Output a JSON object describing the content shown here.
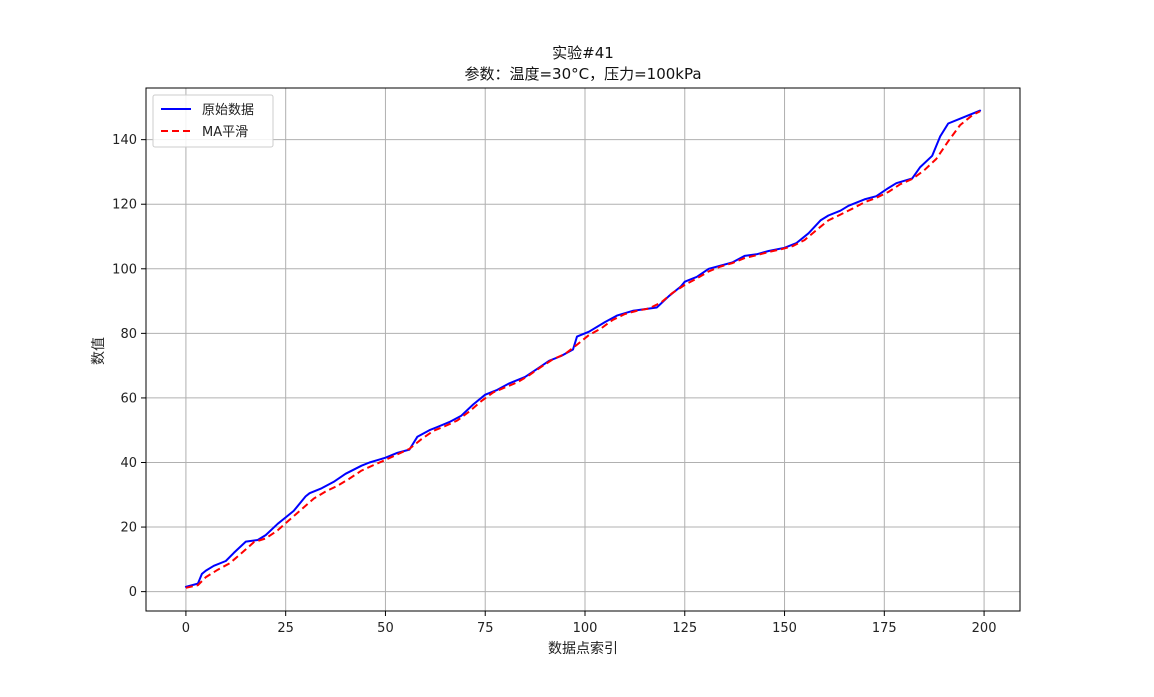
{
  "chart_data": {
    "type": "line",
    "title": "实验#41",
    "subtitle": "参数：温度=30°C，压力=100kPa",
    "xlabel": "数据点索引",
    "ylabel": "数值",
    "xlim": [
      -10,
      209
    ],
    "ylim": [
      -6,
      156
    ],
    "xticks": [
      0,
      25,
      50,
      75,
      100,
      125,
      150,
      175,
      200
    ],
    "yticks": [
      0,
      20,
      40,
      60,
      80,
      100,
      120,
      140
    ],
    "grid": true,
    "legend_position": "top-left",
    "series": [
      {
        "name": "原始数据",
        "color": "#0000ff",
        "style": "solid",
        "x": [
          0,
          3,
          4,
          5,
          7,
          10,
          12,
          15,
          18,
          20,
          23,
          25,
          27,
          30,
          31,
          34,
          37,
          40,
          44,
          46,
          50,
          53,
          56,
          58,
          61,
          63,
          66,
          69,
          72,
          75,
          78,
          81,
          85,
          88,
          91,
          94,
          97,
          98,
          101,
          105,
          108,
          112,
          115,
          118,
          121,
          124,
          125,
          128,
          131,
          134,
          137,
          140,
          143,
          146,
          150,
          153,
          156,
          159,
          161,
          164,
          166,
          170,
          173,
          176,
          178,
          182,
          184,
          187,
          189,
          191,
          194,
          197,
          199
        ],
        "y": [
          1.5,
          2.5,
          5.5,
          6.5,
          8,
          9.5,
          12,
          15.5,
          16,
          17.5,
          21,
          23,
          25,
          29.5,
          30.5,
          32,
          34,
          36.5,
          39,
          40,
          41.5,
          43,
          44,
          48,
          50,
          51,
          52.5,
          54.5,
          58,
          61,
          62.5,
          64.5,
          66.5,
          69,
          71.5,
          73,
          75,
          79,
          80.5,
          83.5,
          85.5,
          87,
          87.5,
          88,
          91.5,
          94.5,
          96,
          97.5,
          100,
          101,
          102,
          104,
          104.5,
          105.5,
          106.5,
          108,
          111,
          115,
          116.5,
          118,
          119.5,
          121.5,
          122.5,
          125,
          126.5,
          128,
          131.5,
          135,
          141,
          145,
          146.5,
          148,
          149
        ]
      },
      {
        "name": "MA平滑",
        "color": "#ff0000",
        "style": "dashed",
        "x": [
          0,
          3,
          5,
          8,
          11,
          14,
          17,
          20,
          23,
          26,
          29,
          32,
          35,
          38,
          41,
          44,
          47,
          50,
          53,
          56,
          59,
          62,
          65,
          68,
          71,
          74,
          77,
          80,
          83,
          86,
          89,
          92,
          95,
          98,
          101,
          104,
          107,
          110,
          113,
          116,
          119,
          122,
          125,
          128,
          131,
          134,
          137,
          140,
          143,
          146,
          149,
          152,
          155,
          158,
          161,
          164,
          167,
          170,
          173,
          176,
          179,
          182,
          185,
          188,
          191,
          194,
          197,
          199
        ],
        "y": [
          1.2,
          2.0,
          4.5,
          6.8,
          8.8,
          12.0,
          15.3,
          16.5,
          19.0,
          22.3,
          25.5,
          28.8,
          31.0,
          32.8,
          35.0,
          37.5,
          39.2,
          40.8,
          42.5,
          44.2,
          47.2,
          49.8,
          51.3,
          53.0,
          55.8,
          59.0,
          61.7,
          63.3,
          64.8,
          67.0,
          69.6,
          72.0,
          73.6,
          76.5,
          79.5,
          81.5,
          84.2,
          86.0,
          87.0,
          87.7,
          89.5,
          92.6,
          95.0,
          97.0,
          99.2,
          100.7,
          101.8,
          103.3,
          104.2,
          105.2,
          106.0,
          107.0,
          108.9,
          112.0,
          115.0,
          116.8,
          118.6,
          120.6,
          122.0,
          123.8,
          126.2,
          127.8,
          130.5,
          134.0,
          139.5,
          144.5,
          147.5,
          148.8
        ]
      }
    ]
  }
}
